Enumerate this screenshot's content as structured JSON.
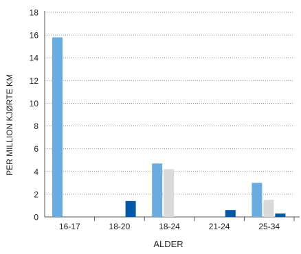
{
  "chart_data": {
    "type": "bar",
    "title": "",
    "xlabel": "ALDER",
    "ylabel": "PER MILLION KJØRTE KM",
    "ylim": [
      0,
      18
    ],
    "yticks": [
      0,
      2,
      4,
      6,
      8,
      10,
      12,
      14,
      16,
      18
    ],
    "grid": true,
    "legend": false,
    "categories": [
      "16-17",
      "18-20",
      "18-24",
      "21-24",
      "25-34"
    ],
    "series": [
      {
        "color": "#6aace0",
        "values": [
          15.8,
          null,
          4.7,
          null,
          3.0
        ]
      },
      {
        "color": "#d9d9d9",
        "values": [
          null,
          null,
          4.2,
          null,
          1.5
        ]
      },
      {
        "color": "#0059a6",
        "values": [
          null,
          1.4,
          null,
          0.6,
          0.3
        ]
      }
    ]
  }
}
